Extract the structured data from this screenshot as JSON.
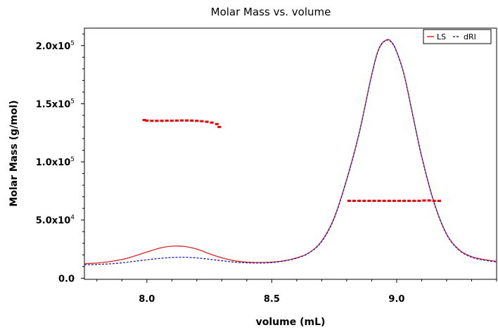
{
  "chart_data": {
    "type": "line",
    "title": "Molar Mass vs. volume",
    "xlabel": "volume (mL)",
    "ylabel": "Molar Mass (g/mol)",
    "xlim": [
      7.75,
      9.4
    ],
    "ylim": [
      -1000,
      215000
    ],
    "x_ticks": [
      {
        "value": 8.0,
        "label": "8.0"
      },
      {
        "value": 8.5,
        "label": "8.5"
      },
      {
        "value": 9.0,
        "label": "9.0"
      }
    ],
    "y_ticks": [
      {
        "value": 0,
        "label": "0.0"
      },
      {
        "value": 50000,
        "label": "5.0x10",
        "exp": "4"
      },
      {
        "value": 100000,
        "label": "1.0x10",
        "exp": "5"
      },
      {
        "value": 150000,
        "label": "1.5x10",
        "exp": "5"
      },
      {
        "value": 200000,
        "label": "2.0x10",
        "exp": "5"
      }
    ],
    "legend_position": "top-right",
    "colors": {
      "ls": "#dd2222",
      "dri": "#1f1fb4",
      "molar_mass": "#e01010"
    },
    "series": [
      {
        "name": "LS",
        "style": "solid",
        "x": [
          7.75,
          7.8,
          7.85,
          7.9,
          7.95,
          8.0,
          8.05,
          8.1,
          8.15,
          8.2,
          8.25,
          8.3,
          8.35,
          8.4,
          8.45,
          8.5,
          8.55,
          8.6,
          8.65,
          8.7,
          8.75,
          8.8,
          8.85,
          8.9,
          8.93,
          8.96,
          8.98,
          9.0,
          9.03,
          9.06,
          9.1,
          9.15,
          9.2,
          9.25,
          9.3,
          9.35,
          9.4
        ],
        "values": [
          12500,
          13000,
          14200,
          16000,
          19000,
          22500,
          25800,
          27500,
          27300,
          25000,
          21000,
          17500,
          15000,
          13800,
          13500,
          13800,
          15000,
          17500,
          22000,
          32000,
          52000,
          85000,
          125000,
          175000,
          198000,
          205000,
          203000,
          195000,
          175000,
          145000,
          105000,
          65000,
          38000,
          24500,
          18500,
          16000,
          14500
        ]
      },
      {
        "name": "dRI",
        "style": "dashed",
        "x": [
          7.75,
          7.8,
          7.85,
          7.9,
          7.95,
          8.0,
          8.05,
          8.1,
          8.15,
          8.2,
          8.25,
          8.3,
          8.35,
          8.4,
          8.45,
          8.5,
          8.55,
          8.6,
          8.65,
          8.7,
          8.75,
          8.8,
          8.85,
          8.9,
          8.93,
          8.96,
          8.98,
          9.0,
          9.03,
          9.06,
          9.1,
          9.15,
          9.2,
          9.25,
          9.3,
          9.35,
          9.4
        ],
        "values": [
          11500,
          11800,
          12300,
          13200,
          14500,
          15800,
          17000,
          17800,
          18000,
          17400,
          16300,
          15000,
          13800,
          13200,
          13000,
          13400,
          14800,
          17200,
          21800,
          31500,
          51500,
          84500,
          124500,
          174500,
          197500,
          204500,
          202500,
          194500,
          174500,
          144500,
          104500,
          64500,
          37500,
          24000,
          18000,
          15500,
          14000
        ]
      },
      {
        "name": "",
        "style": "markers",
        "x": [
          7.99,
          8.0,
          8.02,
          8.04,
          8.06,
          8.08,
          8.1,
          8.12,
          8.14,
          8.16,
          8.18,
          8.2,
          8.22,
          8.24,
          8.26,
          8.28,
          8.29
        ],
        "values": [
          136000,
          135500,
          135300,
          135300,
          135300,
          135400,
          135400,
          135500,
          135600,
          135600,
          135500,
          135300,
          135000,
          134500,
          133800,
          132500,
          130000
        ]
      },
      {
        "name": "",
        "style": "markers",
        "x": [
          8.81,
          8.83,
          8.85,
          8.87,
          8.89,
          8.91,
          8.93,
          8.95,
          8.97,
          8.99,
          9.01,
          9.03,
          9.05,
          9.07,
          9.09,
          9.11,
          9.13,
          9.15,
          9.17
        ],
        "values": [
          66500,
          66500,
          66500,
          66500,
          66500,
          66500,
          66500,
          66500,
          66500,
          66500,
          66500,
          66500,
          66500,
          66500,
          66500,
          66800,
          66800,
          66500,
          66500
        ]
      }
    ]
  }
}
